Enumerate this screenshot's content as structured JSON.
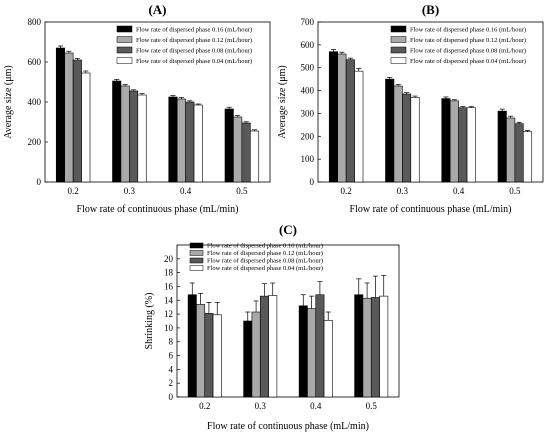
{
  "colors": [
    "#000000",
    "#a9a9a9",
    "#595959",
    "#ffffff"
  ],
  "chart_data": [
    {
      "type": "bar",
      "panel_label": "(A)",
      "categories": [
        "0.2",
        "0.3",
        "0.4",
        "0.5"
      ],
      "xlabel": "Flow rate of continuous phase (mL/min)",
      "ylabel": "Average size (μm)",
      "ylim": [
        0,
        800
      ],
      "yticks": [
        0,
        200,
        400,
        600,
        800
      ],
      "legend_position": "top-right",
      "series": [
        {
          "name": "Flow rate of dispersed phase 0.16 (mL/hour)",
          "values": [
            670,
            505,
            425,
            365
          ],
          "errors": [
            10,
            8,
            7,
            9
          ]
        },
        {
          "name": "Flow rate of dispersed phase 0.12 (mL/hour)",
          "values": [
            645,
            480,
            415,
            325
          ],
          "errors": [
            9,
            7,
            8,
            7
          ]
        },
        {
          "name": "Flow rate of dispersed phase 0.08 (mL/hour)",
          "values": [
            610,
            455,
            400,
            295
          ],
          "errors": [
            8,
            6,
            6,
            6
          ]
        },
        {
          "name": "Flow rate of dispersed phase 0.04 (mL/hour)",
          "values": [
            545,
            435,
            385,
            255
          ],
          "errors": [
            10,
            7,
            5,
            6
          ]
        }
      ]
    },
    {
      "type": "bar",
      "panel_label": "(B)",
      "categories": [
        "0.2",
        "0.3",
        "0.4",
        "0.5"
      ],
      "xlabel": "Flow rate of continuous phase (mL/min)",
      "ylabel": "Average size (μm)",
      "ylim": [
        0,
        700
      ],
      "yticks": [
        0,
        100,
        200,
        300,
        400,
        500,
        600,
        700
      ],
      "legend_position": "top-right",
      "series": [
        {
          "name": "Flow rate of dispersed phase 0.16 (mL/hour)",
          "values": [
            570,
            450,
            365,
            310
          ],
          "errors": [
            10,
            8,
            7,
            9
          ]
        },
        {
          "name": "Flow rate of dispersed phase 0.12 (mL/hour)",
          "values": [
            560,
            420,
            355,
            280
          ],
          "errors": [
            8,
            7,
            5,
            8
          ]
        },
        {
          "name": "Flow rate of dispersed phase 0.08 (mL/hour)",
          "values": [
            535,
            385,
            325,
            255
          ],
          "errors": [
            7,
            6,
            5,
            6
          ]
        },
        {
          "name": "Flow rate of dispersed phase 0.04 (mL/hour)",
          "values": [
            485,
            370,
            325,
            220
          ],
          "errors": [
            12,
            6,
            5,
            6
          ]
        }
      ]
    },
    {
      "type": "bar",
      "panel_label": "(C)",
      "categories": [
        "0.2",
        "0.3",
        "0.4",
        "0.5"
      ],
      "xlabel": "Flow rate of continuous phase (mL/min)",
      "ylabel": "Shrinking (%)",
      "ylim": [
        0,
        22
      ],
      "yticks": [
        0,
        2,
        4,
        6,
        8,
        10,
        12,
        14,
        16,
        18,
        20
      ],
      "legend_position": "top-left",
      "series": [
        {
          "name": "Flow rate of dispersed phase 0.16 (mL/hour)",
          "values": [
            14.8,
            11.0,
            13.2,
            14.8
          ],
          "errors": [
            1.7,
            1.3,
            1.6,
            2.3
          ]
        },
        {
          "name": "Flow rate of dispersed phase 0.12 (mL/hour)",
          "values": [
            13.4,
            12.3,
            12.8,
            14.3
          ],
          "errors": [
            1.6,
            1.6,
            1.8,
            2.2
          ]
        },
        {
          "name": "Flow rate of dispersed phase 0.08 (mL/hour)",
          "values": [
            12.1,
            14.6,
            14.8,
            14.4
          ],
          "errors": [
            1.6,
            1.8,
            1.9,
            3.1
          ]
        },
        {
          "name": "Flow rate of dispersed phase 0.04 (mL/hour)",
          "values": [
            11.9,
            14.7,
            11.1,
            14.6
          ],
          "errors": [
            1.8,
            1.8,
            1.2,
            3.0
          ]
        }
      ]
    }
  ]
}
